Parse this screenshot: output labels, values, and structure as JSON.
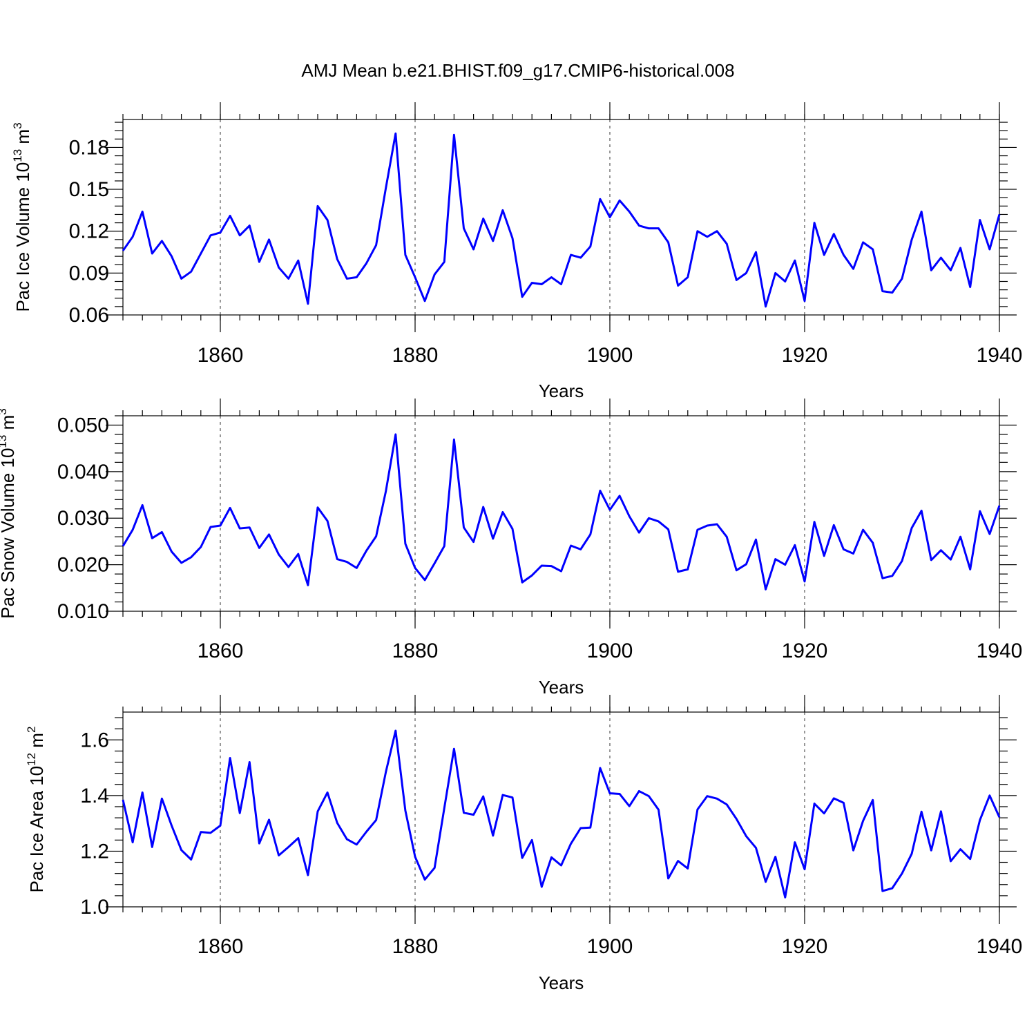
{
  "title": "AMJ Mean b.e21.BHIST.f09_g17.CMIP6-historical.008",
  "colors": {
    "series": "#0000ff",
    "axes": "#000000",
    "grid": "#555555"
  },
  "chart_data": [
    {
      "type": "line",
      "title": "AMJ Mean b.e21.BHIST.f09_g17.CMIP6-historical.008",
      "ylabel": {
        "prefix": "Pac Ice Volume 10",
        "sup1": "13",
        "mid": " m",
        "sup2": "3"
      },
      "xlabel": "Years",
      "xlim": [
        1850,
        1940
      ],
      "ylim": [
        0.06,
        0.2
      ],
      "yticks": [
        0.06,
        0.09,
        0.12,
        0.15,
        0.18
      ],
      "ytick_labels": [
        "0.06",
        "0.09",
        "0.12",
        "0.15",
        "0.18"
      ],
      "xticks": [
        1860,
        1880,
        1900,
        1920,
        1940
      ],
      "xtick_labels": [
        "1860",
        "1880",
        "1900",
        "1920",
        "1940"
      ],
      "grid": "vertical dashed at major x ticks",
      "x_start": 1850,
      "values": [
        0.106,
        0.116,
        0.134,
        0.104,
        0.113,
        0.102,
        0.086,
        0.091,
        0.104,
        0.117,
        0.119,
        0.131,
        0.117,
        0.124,
        0.098,
        0.114,
        0.094,
        0.086,
        0.099,
        0.068,
        0.138,
        0.128,
        0.1,
        0.086,
        0.087,
        0.097,
        0.11,
        0.151,
        0.19,
        0.103,
        0.087,
        0.07,
        0.089,
        0.098,
        0.189,
        0.122,
        0.107,
        0.129,
        0.113,
        0.135,
        0.115,
        0.073,
        0.083,
        0.082,
        0.087,
        0.082,
        0.103,
        0.101,
        0.109,
        0.143,
        0.13,
        0.142,
        0.134,
        0.124,
        0.122,
        0.122,
        0.112,
        0.081,
        0.087,
        0.12,
        0.116,
        0.12,
        0.111,
        0.085,
        0.09,
        0.105,
        0.066,
        0.09,
        0.084,
        0.099,
        0.07,
        0.126,
        0.103,
        0.118,
        0.103,
        0.093,
        0.112,
        0.107,
        0.077,
        0.076,
        0.086,
        0.114,
        0.134,
        0.092,
        0.101,
        0.092,
        0.108,
        0.08,
        0.128,
        0.107,
        0.132
      ]
    },
    {
      "type": "line",
      "ylabel": {
        "prefix": "Pac Snow Volume 10",
        "sup1": "13",
        "mid": " m",
        "sup2": "3"
      },
      "xlabel": "Years",
      "xlim": [
        1850,
        1940
      ],
      "ylim": [
        0.01,
        0.052
      ],
      "yticks": [
        0.01,
        0.02,
        0.03,
        0.04,
        0.05
      ],
      "ytick_labels": [
        "0.010",
        "0.020",
        "0.030",
        "0.040",
        "0.050"
      ],
      "xticks": [
        1860,
        1880,
        1900,
        1920,
        1940
      ],
      "xtick_labels": [
        "1860",
        "1880",
        "1900",
        "1920",
        "1940"
      ],
      "grid": "vertical dashed at major x ticks",
      "x_start": 1850,
      "values": [
        0.024,
        0.0275,
        0.0328,
        0.0257,
        0.027,
        0.0228,
        0.0204,
        0.0216,
        0.0238,
        0.0281,
        0.0284,
        0.0322,
        0.0278,
        0.028,
        0.0236,
        0.0265,
        0.0222,
        0.0195,
        0.0223,
        0.0156,
        0.0323,
        0.0294,
        0.0212,
        0.0206,
        0.0193,
        0.023,
        0.0261,
        0.0358,
        0.048,
        0.0245,
        0.0193,
        0.0167,
        0.0203,
        0.024,
        0.0469,
        0.028,
        0.0249,
        0.0324,
        0.0256,
        0.0313,
        0.0277,
        0.0162,
        0.0177,
        0.0198,
        0.0197,
        0.0186,
        0.0241,
        0.0233,
        0.0265,
        0.0359,
        0.0318,
        0.0348,
        0.0304,
        0.0269,
        0.03,
        0.0293,
        0.0276,
        0.0185,
        0.019,
        0.0275,
        0.0284,
        0.0287,
        0.026,
        0.0188,
        0.0201,
        0.0254,
        0.0147,
        0.0212,
        0.02,
        0.0242,
        0.0164,
        0.0292,
        0.0219,
        0.0285,
        0.0233,
        0.0224,
        0.0275,
        0.0247,
        0.0171,
        0.0176,
        0.0208,
        0.0279,
        0.0316,
        0.021,
        0.0231,
        0.0211,
        0.026,
        0.019,
        0.0315,
        0.0266,
        0.0327
      ]
    },
    {
      "type": "line",
      "ylabel": {
        "prefix": "Pac Ice Area 10",
        "sup1": "12",
        "mid": " m",
        "sup2": "2"
      },
      "xlabel": "Years",
      "xlim": [
        1850,
        1940
      ],
      "ylim": [
        1.0,
        1.7
      ],
      "yticks": [
        1.0,
        1.2,
        1.4,
        1.6
      ],
      "ytick_labels": [
        "1.0",
        "1.2",
        "1.4",
        "1.6"
      ],
      "xticks": [
        1860,
        1880,
        1900,
        1920,
        1940
      ],
      "xtick_labels": [
        "1860",
        "1880",
        "1900",
        "1920",
        "1940"
      ],
      "grid": "vertical dashed at major x ticks",
      "x_start": 1850,
      "values": [
        1.385,
        1.232,
        1.411,
        1.215,
        1.389,
        1.292,
        1.204,
        1.17,
        1.269,
        1.266,
        1.292,
        1.535,
        1.337,
        1.52,
        1.228,
        1.313,
        1.185,
        1.215,
        1.247,
        1.114,
        1.343,
        1.411,
        1.302,
        1.243,
        1.224,
        1.27,
        1.312,
        1.485,
        1.633,
        1.346,
        1.18,
        1.098,
        1.14,
        1.355,
        1.568,
        1.338,
        1.331,
        1.397,
        1.256,
        1.402,
        1.393,
        1.176,
        1.24,
        1.072,
        1.178,
        1.149,
        1.227,
        1.283,
        1.285,
        1.499,
        1.408,
        1.406,
        1.362,
        1.416,
        1.398,
        1.349,
        1.102,
        1.165,
        1.138,
        1.35,
        1.398,
        1.389,
        1.368,
        1.316,
        1.254,
        1.212,
        1.09,
        1.18,
        1.034,
        1.232,
        1.135,
        1.371,
        1.336,
        1.39,
        1.374,
        1.203,
        1.309,
        1.384,
        1.057,
        1.067,
        1.12,
        1.191,
        1.342,
        1.203,
        1.343,
        1.164,
        1.207,
        1.172,
        1.312,
        1.4,
        1.322
      ]
    }
  ]
}
